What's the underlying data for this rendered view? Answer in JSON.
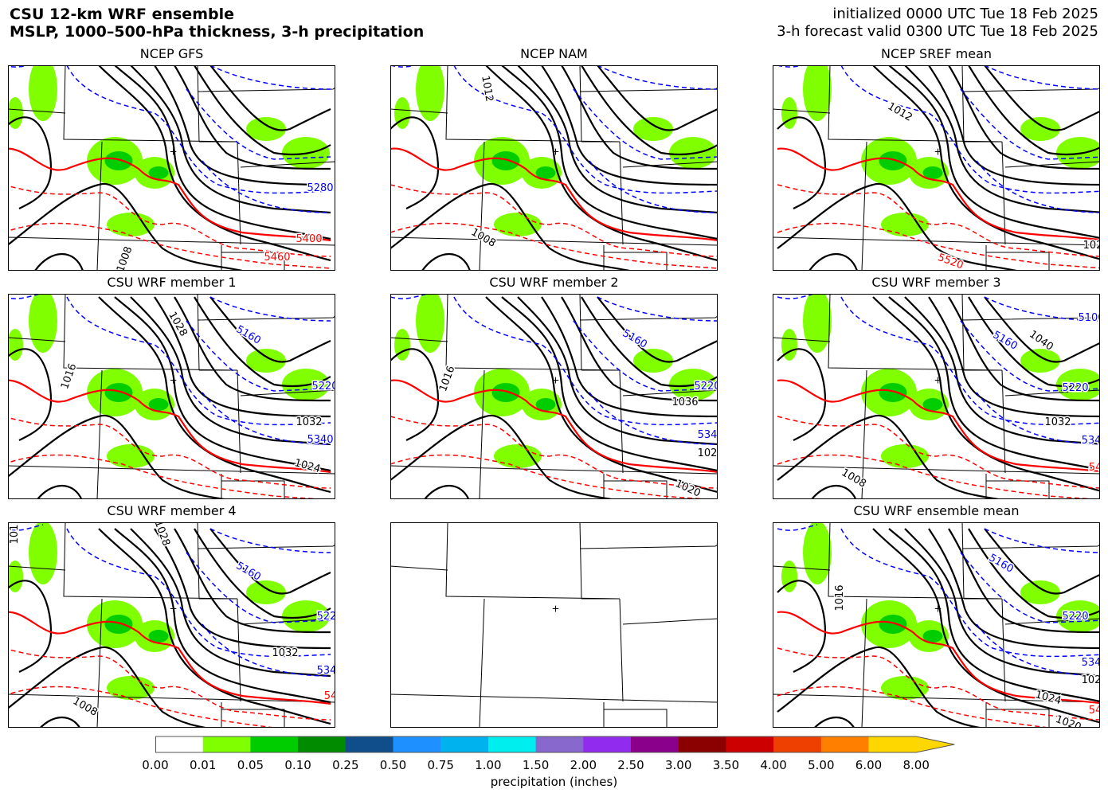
{
  "header": {
    "title1": "CSU 12-km WRF ensemble",
    "title2": "MSLP, 1000–500-hPa thickness, 3-h precipitation",
    "init": "initialized 0000 UTC Tue 18 Feb 2025",
    "valid": "3-h forecast valid 0300 UTC Tue 18 Feb 2025"
  },
  "panels": [
    {
      "title": "NCEP GFS",
      "labels": [
        "5280",
        "5400",
        "5460",
        "1008"
      ]
    },
    {
      "title": "NCEP NAM",
      "labels": [
        "1012",
        "1008"
      ]
    },
    {
      "title": "NCEP SREF mean",
      "labels": [
        "1012",
        "5520",
        "102"
      ]
    },
    {
      "title": "CSU WRF member 1",
      "labels": [
        "1028",
        "5160",
        "1016",
        "5220",
        "1032",
        "5340",
        "1024"
      ]
    },
    {
      "title": "CSU WRF member 2",
      "labels": [
        "5160",
        "1016",
        "5220",
        "1036",
        "534",
        "102",
        "1020"
      ]
    },
    {
      "title": "CSU WRF member 3",
      "labels": [
        "5100",
        "5160",
        "1040",
        "5220",
        "1032",
        "534",
        "1008",
        "54"
      ]
    },
    {
      "title": "CSU WRF member 4",
      "labels": [
        "101",
        "1028",
        "5160",
        "522",
        "1032",
        "534",
        "1008",
        "54"
      ]
    },
    {
      "title": "",
      "labels": []
    },
    {
      "title": "CSU WRF ensemble mean",
      "labels": [
        "5160",
        "1016",
        "5220",
        "534",
        "102",
        "1024",
        "54",
        "1020"
      ]
    }
  ],
  "colorbar": {
    "label": "precipitation (inches)",
    "ticks": [
      "0.00",
      "0.01",
      "0.05",
      "0.10",
      "0.25",
      "0.50",
      "0.75",
      "1.00",
      "1.50",
      "2.00",
      "2.50",
      "3.00",
      "3.50",
      "4.00",
      "5.00",
      "6.00",
      "8.00"
    ],
    "colors": [
      "#ffffff",
      "#7fff00",
      "#00cd00",
      "#008b00",
      "#104e8b",
      "#1e90ff",
      "#00b2ee",
      "#00eeee",
      "#8968cd",
      "#912cee",
      "#8b008b",
      "#8b0000",
      "#cd0000",
      "#ee4000",
      "#ff7f00",
      "#ffd700"
    ]
  },
  "chart_data": {
    "type": "heatmap",
    "title": "MSLP, 1000–500-hPa thickness, 3-h precipitation",
    "colorbar_label": "precipitation (inches)",
    "units": "inches",
    "legend": "bottom"
  }
}
